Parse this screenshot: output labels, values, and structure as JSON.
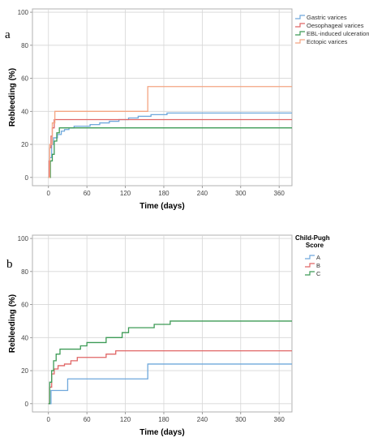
{
  "figure": {
    "panels": [
      "a",
      "b"
    ]
  },
  "chart_data": [
    {
      "type": "line",
      "panel_label": "a",
      "xlabel": "Time (days)",
      "ylabel": "Rebleeding (%)",
      "xlim": [
        -25,
        380
      ],
      "ylim": [
        -5,
        102
      ],
      "xticks": [
        0,
        60,
        120,
        180,
        240,
        300,
        360
      ],
      "yticks": [
        0,
        20,
        40,
        60,
        80,
        100
      ],
      "grid": true,
      "legend_position": "top-right",
      "legend_title": "",
      "series": [
        {
          "name": "Gastric varices",
          "color": "#6fa8dc",
          "points": [
            [
              0,
              0
            ],
            [
              2,
              12
            ],
            [
              5,
              20
            ],
            [
              8,
              24
            ],
            [
              14,
              26
            ],
            [
              20,
              28
            ],
            [
              25,
              29
            ],
            [
              32,
              30
            ],
            [
              40,
              31
            ],
            [
              55,
              31
            ],
            [
              65,
              32
            ],
            [
              80,
              33
            ],
            [
              95,
              34
            ],
            [
              110,
              35
            ],
            [
              125,
              36
            ],
            [
              140,
              37
            ],
            [
              160,
              38
            ],
            [
              185,
              39
            ],
            [
              380,
              39
            ]
          ]
        },
        {
          "name": "Oesophageal varices",
          "color": "#e06666",
          "points": [
            [
              0,
              0
            ],
            [
              1,
              10
            ],
            [
              2,
              18
            ],
            [
              4,
              25
            ],
            [
              6,
              30
            ],
            [
              9,
              35
            ],
            [
              380,
              35
            ]
          ]
        },
        {
          "name": "EBL-induced ulceration",
          "color": "#3d9b56",
          "points": [
            [
              0,
              0
            ],
            [
              3,
              10
            ],
            [
              6,
              14
            ],
            [
              9,
              22
            ],
            [
              13,
              27
            ],
            [
              17,
              30
            ],
            [
              380,
              30
            ]
          ]
        },
        {
          "name": "Ectopic varices",
          "color": "#f4a582",
          "points": [
            [
              0,
              0
            ],
            [
              2,
              20
            ],
            [
              6,
              33
            ],
            [
              10,
              40
            ],
            [
              155,
              40
            ],
            [
              155,
              55
            ],
            [
              380,
              55
            ]
          ]
        }
      ]
    },
    {
      "type": "line",
      "panel_label": "b",
      "xlabel": "Time (days)",
      "ylabel": "Rebleeding (%)",
      "xlim": [
        -25,
        380
      ],
      "ylim": [
        -5,
        102
      ],
      "xticks": [
        0,
        60,
        120,
        180,
        240,
        300,
        360
      ],
      "yticks": [
        0,
        20,
        40,
        60,
        80,
        100
      ],
      "grid": true,
      "legend_position": "top-right",
      "legend_title": "Child-Pugh Score",
      "series": [
        {
          "name": "A",
          "color": "#6fa8dc",
          "points": [
            [
              0,
              0
            ],
            [
              4,
              8
            ],
            [
              30,
              8
            ],
            [
              30,
              15
            ],
            [
              155,
              15
            ],
            [
              155,
              24
            ],
            [
              380,
              24
            ]
          ]
        },
        {
          "name": "B",
          "color": "#e06666",
          "points": [
            [
              0,
              0
            ],
            [
              2,
              10
            ],
            [
              5,
              18
            ],
            [
              9,
              21
            ],
            [
              15,
              23
            ],
            [
              25,
              24
            ],
            [
              35,
              26
            ],
            [
              45,
              28
            ],
            [
              75,
              28
            ],
            [
              90,
              30
            ],
            [
              105,
              32
            ],
            [
              380,
              32
            ]
          ]
        },
        {
          "name": "C",
          "color": "#3d9b56",
          "points": [
            [
              0,
              0
            ],
            [
              2,
              13
            ],
            [
              5,
              20
            ],
            [
              8,
              26
            ],
            [
              12,
              30
            ],
            [
              18,
              33
            ],
            [
              45,
              33
            ],
            [
              50,
              35
            ],
            [
              60,
              37
            ],
            [
              90,
              40
            ],
            [
              115,
              43
            ],
            [
              125,
              46
            ],
            [
              155,
              46
            ],
            [
              165,
              48
            ],
            [
              190,
              50
            ],
            [
              380,
              50
            ]
          ]
        }
      ]
    }
  ]
}
